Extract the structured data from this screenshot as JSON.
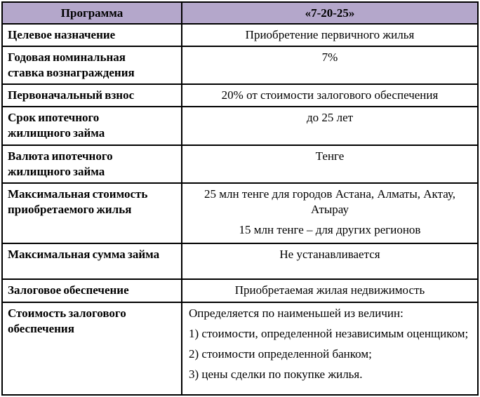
{
  "table": {
    "header": {
      "program_label": "Программа",
      "program_value": "«7-20-25»"
    },
    "rows": [
      {
        "label": "Целевое назначение",
        "value": [
          "Приобретение первичного жилья"
        ]
      },
      {
        "label": "Годовая номинальная ставка вознаграждения",
        "value": [
          "7%"
        ]
      },
      {
        "label": "Первоначальный взнос",
        "value": [
          "20% от стоимости залогового обеспечения"
        ]
      },
      {
        "label": "Срок ипотечного жилищного займа",
        "value": [
          "до 25 лет"
        ]
      },
      {
        "label": "Валюта ипотечного жилищного займа",
        "value": [
          "Тенге"
        ]
      },
      {
        "label": "Максимальная стоимость приобретаемого жилья",
        "value": [
          "25 млн тенге для городов Астана, Алматы, Актау, Атырау",
          "15 млн тенге – для других регионов"
        ]
      },
      {
        "label": "Максимальная сумма займа",
        "value": [
          "Не устанавливается"
        ]
      },
      {
        "label": "Залоговое обеспечение",
        "value": [
          "Приобретаемая жилая недвижимость"
        ]
      },
      {
        "label": "Стоимость залогового обеспечения",
        "value": [
          "Определяется по наименьшей из величин:",
          "1) стоимости, определенной независимым оценщиком;",
          "2) стоимости определенной банком;",
          "3) цены сделки по покупке жилья."
        ]
      }
    ],
    "colors": {
      "header_bg": "#b4a7cb",
      "border": "#000000",
      "text": "#000000"
    }
  }
}
